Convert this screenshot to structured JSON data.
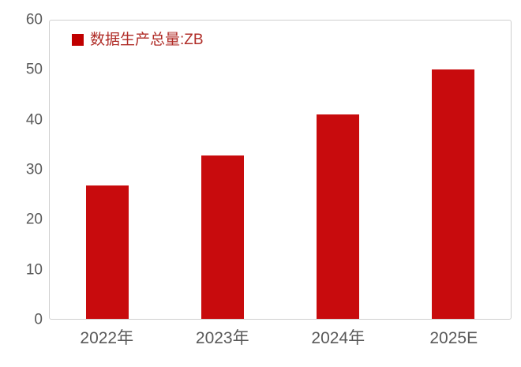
{
  "chart_data": {
    "type": "bar",
    "title": "",
    "categories": [
      "2022年",
      "2023年",
      "2024年",
      "2025E"
    ],
    "series": [
      {
        "name": "数据生产总量:ZB",
        "values": [
          26.8,
          32.9,
          41.1,
          50.2
        ]
      }
    ],
    "ylim": [
      0,
      60
    ],
    "yticks": [
      0,
      10,
      20,
      30,
      40,
      50,
      60
    ],
    "xlabel": "",
    "ylabel": "",
    "grid": false,
    "legend_position": "top-left",
    "colors": {
      "bar": "#c80b0d",
      "legend_swatch": "#c00000",
      "legend_text": "#b02d28",
      "axis_text": "#595959",
      "plot_border": "#cfcfcf",
      "background": "#ffffff"
    }
  },
  "legend": {
    "label": "数据生产总量:ZB"
  }
}
